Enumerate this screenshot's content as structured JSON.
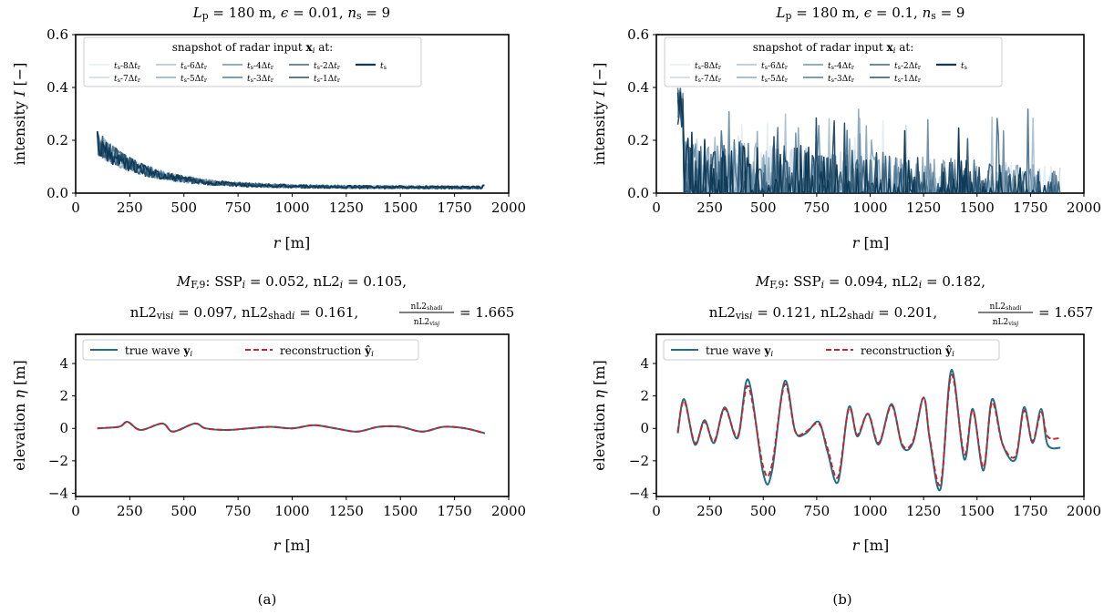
{
  "panels": [
    {
      "id": "a",
      "caption": "(a)",
      "top": {
        "title": "L_p = 180 m, ϵ = 0.01, n_s = 9",
        "ylabel": "intensity I [−]",
        "xlabel": "r [m]",
        "legend_title": "snapshot of radar input x_i at:"
      },
      "bottom": {
        "title_line1": "M_F,9: SSP_i = 0.052, nL2_i = 0.105,",
        "title_line2": "nL2_vis_i = 0.097, nL2_shad_i = 0.161, nL2_shad_i / nL2_vis_i = 1.665",
        "ylabel": "elevation η [m]",
        "xlabel": "r [m]"
      }
    },
    {
      "id": "b",
      "caption": "(b)",
      "top": {
        "title": "L_p = 180 m, ϵ = 0.1, n_s = 9",
        "ylabel": "intensity I [−]",
        "xlabel": "r [m]",
        "legend_title": "snapshot of radar input x_i at:"
      },
      "bottom": {
        "title_line1": "M_F,9: SSP_i = 0.094, nL2_i = 0.182,",
        "title_line2": "nL2_vis_i = 0.121, nL2_shad_i = 0.201, nL2_shad_i / nL2_vis_i = 1.657",
        "ylabel": "elevation η [m]",
        "xlabel": "r [m]"
      }
    }
  ],
  "legend_snapshots": [
    "t_s-8Δt_r",
    "t_s-7Δt_r",
    "t_s-6Δt_r",
    "t_s-5Δt_r",
    "t_s-4Δt_r",
    "t_s-3Δt_r",
    "t_s-2Δt_r",
    "t_s-1Δt_r",
    "t_s"
  ],
  "legend_wave": [
    "true wave y_i",
    "reconstruction ŷ_i"
  ],
  "colors": {
    "snapshots": [
      "#e3edf3",
      "#c9dae4",
      "#adc4d2",
      "#8fabbe",
      "#7293aa",
      "#567b95",
      "#3d6580",
      "#26506b",
      "#0e3a57"
    ],
    "true_wave": "#1f6f8b",
    "reconstruction": "#c1272d"
  },
  "chart_data": [
    {
      "type": "line",
      "panel": "a-top",
      "xlim": [
        0,
        2000
      ],
      "ylim": [
        0.0,
        0.6
      ],
      "xticks": [
        0,
        250,
        500,
        750,
        1000,
        1250,
        1500,
        1750,
        2000
      ],
      "yticks": [
        0.0,
        0.2,
        0.4,
        0.6
      ],
      "x_range": [
        100,
        1890
      ],
      "series": [
        {
          "name": "t_s-8Δt_r",
          "x": [
            100,
            250,
            500,
            750,
            1000,
            1250,
            1500,
            1750,
            1890
          ],
          "y": [
            0.17,
            0.1,
            0.06,
            0.04,
            0.03,
            0.025,
            0.02,
            0.018,
            0.015
          ]
        },
        {
          "name": "t_s",
          "x": [
            100,
            250,
            500,
            750,
            1000,
            1250,
            1500,
            1750,
            1890
          ],
          "y": [
            0.18,
            0.1,
            0.055,
            0.04,
            0.03,
            0.025,
            0.02,
            0.018,
            0.03
          ]
        }
      ]
    },
    {
      "type": "line",
      "panel": "b-top",
      "xlim": [
        0,
        2000
      ],
      "ylim": [
        0.0,
        0.6
      ],
      "xticks": [
        0,
        250,
        500,
        750,
        1000,
        1250,
        1500,
        1750,
        2000
      ],
      "yticks": [
        0.0,
        0.2,
        0.4,
        0.6
      ],
      "x_range": [
        100,
        1890
      ],
      "series": [
        {
          "name": "t_s-8Δt_r",
          "x": [
            100,
            250,
            500,
            750,
            1000,
            1250,
            1500,
            1750,
            1890
          ],
          "y": [
            0.3,
            0.2,
            0.15,
            0.1,
            0.1,
            0.1,
            0.1,
            0.1,
            0.0
          ]
        },
        {
          "name": "t_s",
          "x": [
            100,
            250,
            500,
            750,
            1000,
            1250,
            1500,
            1750,
            1890
          ],
          "y": [
            0.3,
            0.2,
            0.15,
            0.1,
            0.1,
            0.1,
            0.1,
            0.1,
            0.0
          ]
        }
      ]
    },
    {
      "type": "line",
      "panel": "a-bottom",
      "xlim": [
        0,
        2000
      ],
      "ylim": [
        -4.2,
        5.8
      ],
      "xticks": [
        0,
        250,
        500,
        750,
        1000,
        1250,
        1500,
        1750,
        2000
      ],
      "yticks": [
        -4,
        -2,
        0,
        2,
        4
      ],
      "series": [
        {
          "name": "true wave y_i",
          "x": [
            100,
            200,
            240,
            300,
            400,
            450,
            550,
            600,
            700,
            800,
            900,
            1000,
            1100,
            1200,
            1300,
            1400,
            1500,
            1600,
            1700,
            1800,
            1890
          ],
          "y": [
            0.0,
            0.1,
            0.4,
            -0.1,
            0.3,
            -0.2,
            0.3,
            0.0,
            -0.1,
            0.0,
            0.1,
            0.0,
            0.2,
            0.0,
            -0.2,
            0.1,
            0.1,
            -0.2,
            0.1,
            0.0,
            -0.3
          ]
        },
        {
          "name": "reconstruction ŷ_i",
          "x": [
            100,
            200,
            240,
            300,
            400,
            450,
            550,
            600,
            700,
            800,
            900,
            1000,
            1100,
            1200,
            1300,
            1400,
            1500,
            1600,
            1700,
            1800,
            1890
          ],
          "y": [
            0.0,
            0.1,
            0.4,
            -0.1,
            0.3,
            -0.2,
            0.3,
            0.0,
            -0.1,
            0.0,
            0.1,
            0.0,
            0.2,
            0.0,
            -0.2,
            0.1,
            0.1,
            -0.2,
            0.1,
            0.0,
            -0.3
          ]
        }
      ]
    },
    {
      "type": "line",
      "panel": "b-bottom",
      "xlim": [
        0,
        2000
      ],
      "ylim": [
        -4.2,
        5.8
      ],
      "xticks": [
        0,
        250,
        500,
        750,
        1000,
        1250,
        1500,
        1750,
        2000
      ],
      "yticks": [
        -4,
        -2,
        0,
        2,
        4
      ],
      "series": [
        {
          "name": "true wave y_i",
          "x": [
            100,
            130,
            180,
            225,
            270,
            320,
            380,
            430,
            500,
            540,
            600,
            650,
            700,
            760,
            800,
            850,
            900,
            940,
            990,
            1040,
            1100,
            1150,
            1200,
            1250,
            1280,
            1330,
            1380,
            1440,
            1480,
            1530,
            1570,
            1620,
            1680,
            1720,
            1760,
            1800,
            1830,
            1890
          ],
          "y": [
            -0.3,
            1.8,
            -1.0,
            0.5,
            -0.9,
            1.3,
            -0.6,
            3.0,
            -2.8,
            -2.7,
            2.9,
            -0.2,
            -0.3,
            0.4,
            -1.4,
            -3.3,
            1.3,
            -0.5,
            0.9,
            -1.0,
            1.5,
            -1.1,
            -0.9,
            1.9,
            -0.8,
            -3.7,
            3.6,
            -1.9,
            1.2,
            -2.6,
            1.8,
            -1.0,
            -1.9,
            1.3,
            -0.9,
            1.2,
            -1.0,
            -1.2
          ]
        },
        {
          "name": "reconstruction ŷ_i",
          "x": [
            100,
            130,
            180,
            225,
            270,
            320,
            380,
            430,
            500,
            540,
            600,
            650,
            700,
            760,
            800,
            850,
            900,
            940,
            990,
            1040,
            1100,
            1150,
            1200,
            1250,
            1280,
            1330,
            1380,
            1440,
            1480,
            1530,
            1570,
            1620,
            1680,
            1720,
            1760,
            1800,
            1830,
            1890
          ],
          "y": [
            -0.2,
            1.7,
            -0.9,
            0.4,
            -0.8,
            1.2,
            -0.5,
            2.6,
            -2.4,
            -2.3,
            2.7,
            -0.2,
            -0.2,
            0.3,
            -1.2,
            -3.0,
            1.2,
            -0.4,
            0.9,
            -0.9,
            1.4,
            -1.0,
            -0.8,
            1.9,
            -0.7,
            -3.4,
            3.3,
            -1.6,
            1.1,
            -2.4,
            1.6,
            -1.0,
            -1.7,
            1.1,
            -0.8,
            1.0,
            -0.5,
            -0.6
          ]
        }
      ]
    }
  ]
}
